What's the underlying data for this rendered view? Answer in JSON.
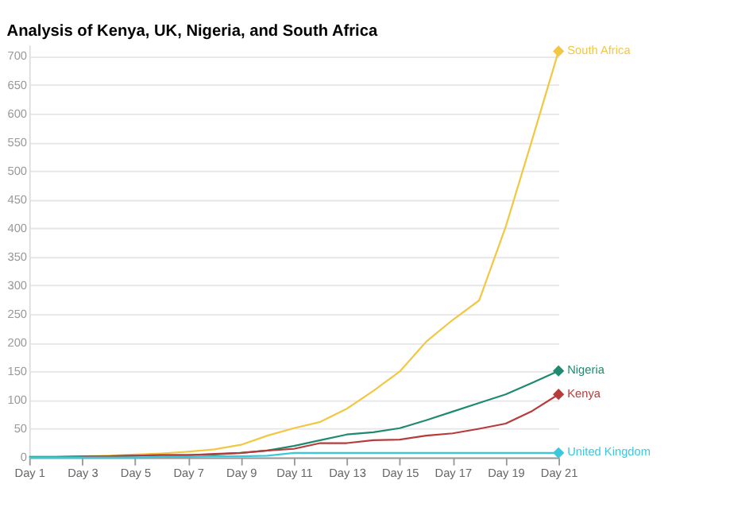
{
  "chart_data": {
    "type": "line",
    "title": "Analysis of Kenya, UK, Nigeria, and South Africa",
    "categories": [
      "Day 1",
      null,
      "Day 3",
      null,
      "Day 5",
      null,
      "Day 7",
      null,
      "Day 9",
      null,
      "Day 11",
      null,
      "Day 13",
      null,
      "Day 15",
      null,
      "Day 17",
      null,
      "Day 19",
      null,
      "Day 21"
    ],
    "series": [
      {
        "name": "South Africa",
        "color": "#f2c744",
        "values": [
          1,
          1,
          2,
          3,
          5,
          7,
          10,
          14,
          22,
          38,
          51,
          62,
          85,
          116,
          150,
          202,
          240,
          274,
          402,
          554,
          709
        ]
      },
      {
        "name": "Nigeria",
        "color": "#1f8a70",
        "values": [
          1,
          1,
          2,
          2,
          3,
          4,
          4,
          5,
          8,
          12,
          20,
          30,
          40,
          44,
          51,
          65,
          80,
          95,
          110,
          130,
          151
        ]
      },
      {
        "name": "Kenya",
        "color": "#b83b3b",
        "values": [
          null,
          null,
          1,
          2,
          3,
          4,
          4,
          6,
          8,
          12,
          15,
          25,
          25,
          30,
          31,
          38,
          42,
          50,
          59,
          81,
          110
        ]
      },
      {
        "name": "United Kingdom",
        "color": "#3cc8dc",
        "values": [
          0,
          0,
          0,
          0,
          0,
          1,
          1,
          2,
          2,
          3,
          8,
          8,
          8,
          8,
          8,
          8,
          8,
          8,
          8,
          8,
          8
        ]
      }
    ],
    "ylim": [
      0,
      720
    ],
    "yticks": [
      0,
      50,
      100,
      150,
      200,
      250,
      300,
      350,
      400,
      450,
      500,
      550,
      600,
      650,
      700
    ],
    "grid": "y",
    "line_style": "solid",
    "legend": "right"
  }
}
